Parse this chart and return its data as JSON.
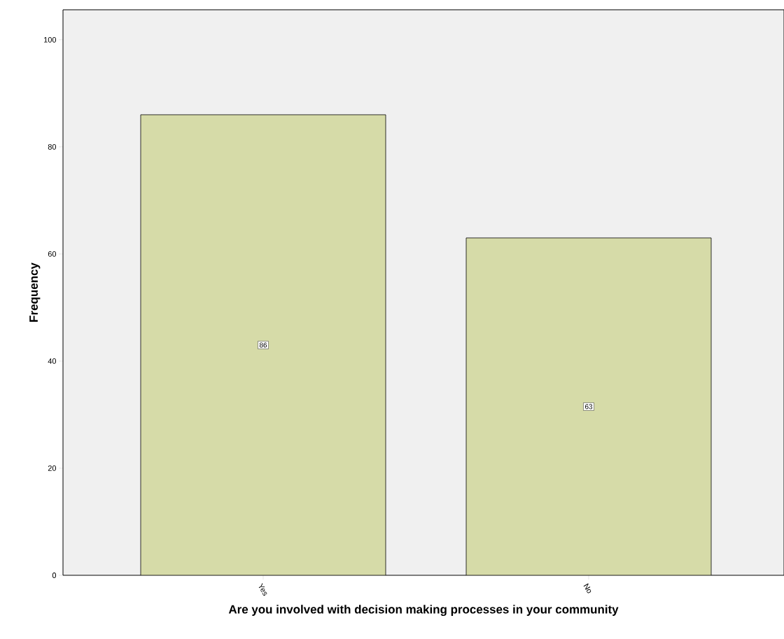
{
  "chart_data": {
    "type": "bar",
    "xlabel": "Are you involved with decision making processes in your community",
    "ylabel": "Frequency",
    "categories": [
      "Yes",
      "No"
    ],
    "values": [
      86,
      63
    ],
    "color": "#d6dba8",
    "ylim": [
      0,
      105.6
    ],
    "yticks": [
      0,
      20,
      40,
      60,
      80,
      100
    ],
    "data_labels": true
  }
}
